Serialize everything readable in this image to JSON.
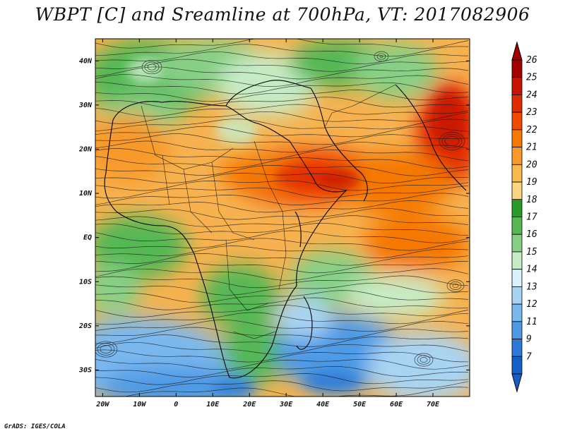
{
  "title": "WBPT [C] and Sreamline at 700hPa, VT: 2017082906",
  "credit": "GrADS: IGES/COLA",
  "lat_labels": [
    "40N",
    "30N",
    "20N",
    "10N",
    "EQ",
    "10S",
    "20S",
    "30S"
  ],
  "lat_values": [
    40,
    30,
    20,
    10,
    0,
    -10,
    -20,
    -30
  ],
  "lon_labels": [
    "20W",
    "10W",
    "0",
    "10E",
    "20E",
    "30E",
    "40E",
    "50E",
    "60E",
    "70E"
  ],
  "lon_values": [
    -20,
    -10,
    0,
    10,
    20,
    30,
    40,
    50,
    60,
    70
  ],
  "lat_range": [
    -36,
    45
  ],
  "lon_range": [
    -22,
    80
  ],
  "colorbar": {
    "labels": [
      "26",
      "25",
      "24",
      "23",
      "22",
      "21",
      "20",
      "19",
      "18",
      "17",
      "16",
      "15",
      "14",
      "13",
      "12",
      "11",
      "9",
      "7"
    ],
    "colors": [
      "#a50000",
      "#c81400",
      "#e02a00",
      "#ef4a00",
      "#f57800",
      "#f89a2a",
      "#f9b94f",
      "#fbd682",
      "#2a9a2a",
      "#55b855",
      "#86d086",
      "#c6ecc6",
      "#d8f1ff",
      "#a8d4f4",
      "#7ab8ee",
      "#4e9ae6",
      "#2b7ad8",
      "#1560c8"
    ]
  }
}
